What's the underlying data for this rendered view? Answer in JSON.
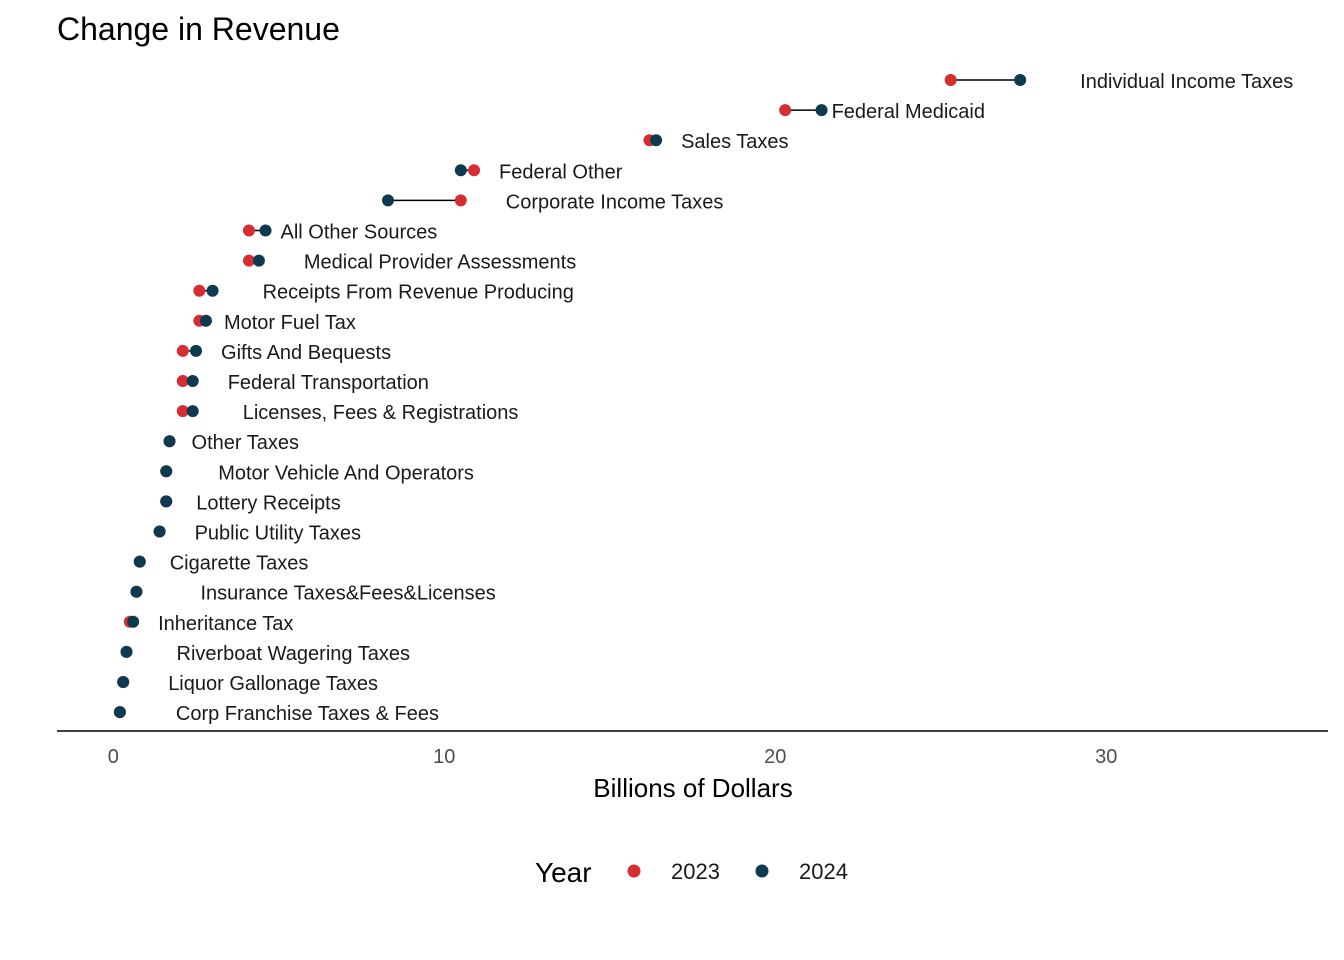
{
  "chart_data": {
    "type": "dumbbell",
    "title": "Change in Revenue",
    "xlabel": "Billions of Dollars",
    "xlim": [
      -1.7,
      36.7
    ],
    "x_ticks": [
      0,
      10,
      20,
      30
    ],
    "legend": {
      "title": "Year",
      "position": "bottom",
      "entries": [
        {
          "name": "2023",
          "color": "#d62d32"
        },
        {
          "name": "2024",
          "color": "#0d3a4f"
        }
      ]
    },
    "rows": [
      {
        "label": "Individual Income Taxes",
        "v2023": 25.3,
        "v2024": 27.4
      },
      {
        "label": "Federal Medicaid",
        "v2023": 20.3,
        "v2024": 21.4
      },
      {
        "label": "Sales Taxes",
        "v2023": 16.2,
        "v2024": 16.4
      },
      {
        "label": "Federal Other",
        "v2023": 10.9,
        "v2024": 10.5
      },
      {
        "label": "Corporate Income Taxes",
        "v2023": 10.5,
        "v2024": 8.3
      },
      {
        "label": "All Other Sources",
        "v2023": 4.1,
        "v2024": 4.6
      },
      {
        "label": "Medical Provider Assessments",
        "v2023": 4.1,
        "v2024": 4.4
      },
      {
        "label": "Receipts From Revenue Producing",
        "v2023": 2.6,
        "v2024": 3.0
      },
      {
        "label": "Motor Fuel Tax",
        "v2023": 2.6,
        "v2024": 2.8
      },
      {
        "label": "Gifts And Bequests",
        "v2023": 2.1,
        "v2024": 2.5
      },
      {
        "label": "Federal Transportation",
        "v2023": 2.1,
        "v2024": 2.4
      },
      {
        "label": "Licenses, Fees & Registrations",
        "v2023": 2.1,
        "v2024": 2.4
      },
      {
        "label": "Other Taxes",
        "v2023": 1.7,
        "v2024": 1.7
      },
      {
        "label": "Motor Vehicle And Operators",
        "v2023": 1.6,
        "v2024": 1.6
      },
      {
        "label": "Lottery Receipts",
        "v2023": 1.6,
        "v2024": 1.6
      },
      {
        "label": "Public Utility Taxes",
        "v2023": 1.4,
        "v2024": 1.4
      },
      {
        "label": "Cigarette Taxes",
        "v2023": 0.8,
        "v2024": 0.8
      },
      {
        "label": "Insurance Taxes&Fees&Licenses",
        "v2023": 0.7,
        "v2024": 0.7
      },
      {
        "label": "Inheritance Tax",
        "v2023": 0.5,
        "v2024": 0.6
      },
      {
        "label": "Riverboat Wagering Taxes",
        "v2023": 0.4,
        "v2024": 0.4
      },
      {
        "label": "Liquor Gallonage Taxes",
        "v2023": 0.3,
        "v2024": 0.3
      },
      {
        "label": "Corp Franchise Taxes & Fees",
        "v2023": 0.2,
        "v2024": 0.2
      }
    ]
  }
}
